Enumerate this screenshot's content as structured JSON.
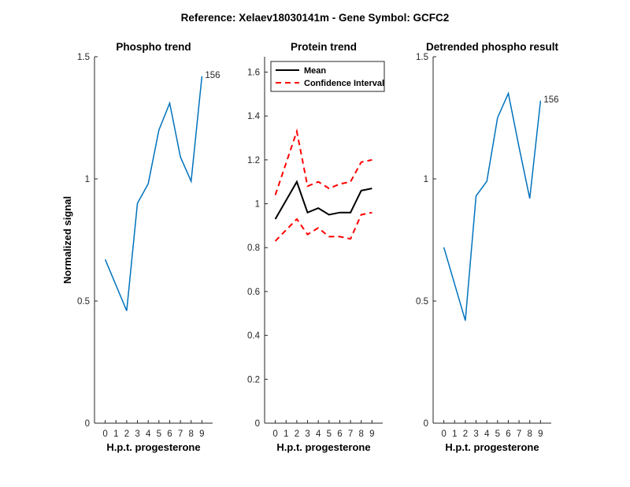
{
  "suptitle": "Reference:  Xelaev18030141m - Gene Symbol:  GCFC2",
  "chart_data": [
    {
      "type": "line",
      "title": "Phospho trend",
      "xlabel": "H.p.t. progesterone",
      "ylabel": "Normalized signal",
      "x": [
        0,
        2,
        3,
        4,
        5,
        6,
        7,
        8,
        9
      ],
      "xticks": [
        "0",
        "1",
        "2",
        "3",
        "4",
        "5",
        "6",
        "7",
        "8",
        "9"
      ],
      "ylim": [
        0,
        1.5
      ],
      "yticks": [
        "0",
        "0.5",
        "1",
        "1.5"
      ],
      "series": [
        {
          "values": [
            0.67,
            0.46,
            0.9,
            0.98,
            1.2,
            1.31,
            1.09,
            0.99,
            1.42
          ],
          "color": "#0072BD",
          "dash": ""
        }
      ],
      "annotation": "156"
    },
    {
      "type": "line",
      "title": "Protein trend",
      "xlabel": "H.p.t. progesterone",
      "ylabel": "",
      "x": [
        0,
        2,
        3,
        4,
        5,
        6,
        7,
        8,
        9
      ],
      "xticks": [
        "0",
        "1",
        "2",
        "3",
        "4",
        "5",
        "6",
        "7",
        "8",
        "9"
      ],
      "ylim": [
        0,
        1.67
      ],
      "yticks": [
        "0",
        "0.2",
        "0.4",
        "0.6",
        "0.8",
        "1",
        "1.2",
        "1.4",
        "1.6"
      ],
      "series": [
        {
          "name": "Mean",
          "values": [
            0.93,
            1.1,
            0.96,
            0.98,
            0.95,
            0.96,
            0.96,
            1.06,
            1.07
          ],
          "color": "#000000",
          "dash": ""
        },
        {
          "name": "Confidence Interval",
          "values": [
            1.04,
            1.33,
            1.08,
            1.1,
            1.07,
            1.09,
            1.1,
            1.19,
            1.2
          ],
          "color": "#FF0000",
          "dash": "7,5"
        },
        {
          "values": [
            0.83,
            0.93,
            0.86,
            0.89,
            0.85,
            0.85,
            0.84,
            0.95,
            0.96
          ],
          "color": "#FF0000",
          "dash": "7,5"
        }
      ],
      "legend": {
        "position": "top-left",
        "entries": [
          {
            "label": "Mean",
            "color": "#000000",
            "dash": ""
          },
          {
            "label": "Confidence Interval",
            "color": "#FF0000",
            "dash": "7,5"
          }
        ]
      }
    },
    {
      "type": "line",
      "title": "Detrended phospho result",
      "xlabel": "H.p.t. progesterone",
      "ylabel": "",
      "x": [
        0,
        2,
        3,
        4,
        5,
        6,
        7,
        8,
        9
      ],
      "xticks": [
        "0",
        "1",
        "2",
        "3",
        "4",
        "5",
        "6",
        "7",
        "8",
        "9"
      ],
      "ylim": [
        0,
        1.5
      ],
      "yticks": [
        "0",
        "0.5",
        "1",
        "1.5"
      ],
      "series": [
        {
          "values": [
            0.72,
            0.42,
            0.93,
            0.99,
            1.25,
            1.35,
            1.13,
            0.92,
            1.32
          ],
          "color": "#0072BD",
          "dash": ""
        }
      ],
      "annotation": "156"
    }
  ]
}
